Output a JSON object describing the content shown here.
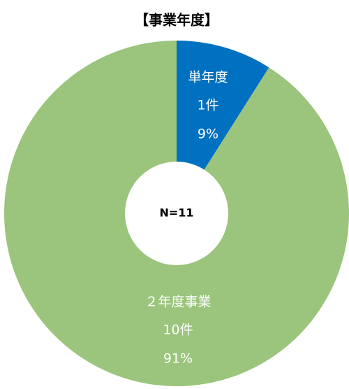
{
  "chart_data": {
    "type": "donut",
    "title": "【事業年度】",
    "center_label": "N=11",
    "categories": [
      "単年度",
      "２年度事業"
    ],
    "values": [
      9,
      91
    ],
    "value_labels": [
      "9%",
      "91%"
    ],
    "count_labels": [
      "1件",
      "10件"
    ],
    "colors": [
      "#0070c0",
      "#9bc47c"
    ]
  }
}
